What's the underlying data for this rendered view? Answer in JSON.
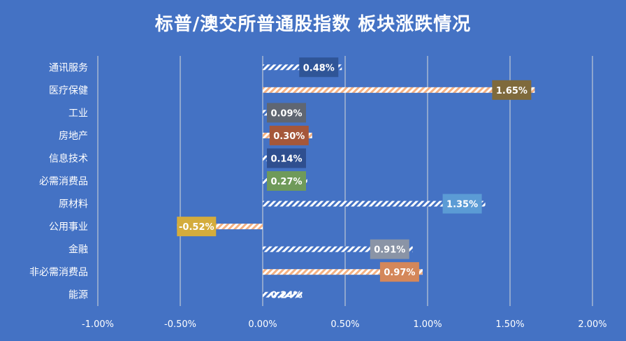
{
  "title": "标普/澳交所普通股指数 板块涨跌情况",
  "colors": {
    "background": "#4472c4",
    "gridline": "#d9d9d9",
    "bar_light": "#ffffff",
    "bar_warm": "#f4b183"
  },
  "chart_data": {
    "type": "bar",
    "orientation": "horizontal",
    "title": "标普/澳交所普通股指数 板块涨跌情况",
    "xlim": [
      -0.01,
      0.02
    ],
    "x_ticks": [
      -0.01,
      -0.005,
      0,
      0.005,
      0.01,
      0.015,
      0.02
    ],
    "x_tick_labels": [
      "-1.00%",
      "-0.50%",
      "0.00%",
      "0.50%",
      "1.00%",
      "1.50%",
      "2.00%"
    ],
    "grid": "vertical gridlines",
    "legend": "none",
    "categories": [
      "通讯服务",
      "医疗保健",
      "工业",
      "房地产",
      "信息技术",
      "必需消费品",
      "原材料",
      "公用事业",
      "金融",
      "非必需消费品",
      "能源"
    ],
    "values": [
      0.0048,
      0.0165,
      0.0009,
      0.003,
      0.0014,
      0.0027,
      0.0135,
      -0.0052,
      0.0091,
      0.0097,
      0.0024
    ],
    "data_labels": [
      "0.48%",
      "1.65%",
      "0.09%",
      "0.30%",
      "0.14%",
      "0.27%",
      "1.35%",
      "-0.52%",
      "0.91%",
      "0.97%",
      "0.24%"
    ],
    "bar_styles": [
      "light",
      "warm",
      "light",
      "warm",
      "light",
      "light",
      "light",
      "warm",
      "light",
      "warm",
      "light"
    ],
    "label_box_colors": [
      "#2f5597",
      "#7f6a3c",
      "#5f6672",
      "#a5573a",
      "#2f4f8f",
      "#6f9a5a",
      "#5b9bd5",
      "#d4ac3c",
      "#8a94a6",
      "#d4875a",
      null
    ]
  }
}
